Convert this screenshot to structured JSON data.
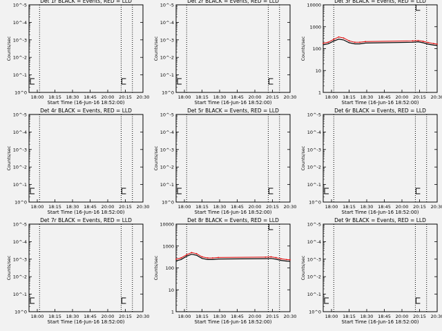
{
  "figure": {
    "background": "#f2f2f2",
    "event_color": "#000000",
    "lld_color": "#e00000",
    "marker_color": "#000000"
  },
  "chart_data": [
    {
      "type": "line",
      "title": "Det 1r BLACK = Events, RED = LLD",
      "xlabel": "Start Time (16-Jun-16 18:52:00)",
      "ylabel": "Counts/sec",
      "xlim": [
        "17:53",
        "20:35"
      ],
      "log_y": true,
      "ylim": [
        1,
        10000
      ],
      "x_ticks": [
        "18:00",
        "18:15",
        "18:30",
        "18:45",
        "20:00",
        "20:15",
        "20:30"
      ],
      "y_ticks": [
        "10^0",
        "10^-1",
        "10^-2",
        "10^-3",
        "10^-4",
        "10^-5"
      ],
      "grid": false,
      "vlines": [
        "18:08",
        "20:04",
        "20:20"
      ],
      "legend": "in title",
      "series": []
    },
    {
      "type": "line",
      "title": "Det 2r BLACK = Events, RED = LLD",
      "xlabel": "Start Time (16-Jun-16 18:52:00)",
      "ylabel": "Counts/sec",
      "xlim": [
        "17:53",
        "20:35"
      ],
      "log_y": true,
      "ylim": [
        1,
        10000
      ],
      "x_ticks": [
        "18:00",
        "18:15",
        "18:30",
        "18:45",
        "20:00",
        "20:15",
        "20:30"
      ],
      "y_ticks": [
        "10^0",
        "10^-1",
        "10^-2",
        "10^-3",
        "10^-4",
        "10^-5"
      ],
      "grid": false,
      "vlines": [
        "18:08",
        "20:04",
        "20:20"
      ],
      "legend": "in title",
      "series": []
    },
    {
      "type": "line",
      "title": "Det 3r BLACK = Events, RED = LLD",
      "xlabel": "Start Time (16-Jun-16 18:52:00)",
      "ylabel": "Counts/sec",
      "xlim": [
        "17:53",
        "20:35"
      ],
      "log_y": true,
      "ylim": [
        1,
        10000
      ],
      "x_ticks": [
        "18:00",
        "18:15",
        "18:30",
        "18:45",
        "20:00",
        "20:15",
        "20:30"
      ],
      "y_ticks": [
        "1",
        "10",
        "100",
        "1000",
        "10000"
      ],
      "grid": false,
      "vlines": [
        "18:08",
        "20:04",
        "20:20"
      ],
      "legend": "in title",
      "series": [
        {
          "color": "#000000",
          "x": [
            "17:53",
            "18:00",
            "18:08",
            "18:15",
            "18:22",
            "18:30",
            "18:38",
            "18:45",
            "18:53",
            "20:00",
            "20:08",
            "20:15",
            "20:22",
            "20:30",
            "20:35"
          ],
          "y": [
            150,
            165,
            220,
            270,
            250,
            185,
            165,
            165,
            180,
            195,
            205,
            185,
            160,
            145,
            140
          ]
        },
        {
          "color": "#e00000",
          "x": [
            "17:53",
            "18:00",
            "18:08",
            "18:15",
            "18:22",
            "18:30",
            "18:38",
            "18:45",
            "18:53",
            "20:00",
            "20:08",
            "20:15",
            "20:22",
            "20:30",
            "20:35"
          ],
          "y": [
            175,
            195,
            265,
            340,
            305,
            225,
            195,
            195,
            210,
            225,
            235,
            215,
            190,
            170,
            160
          ]
        }
      ]
    },
    {
      "type": "line",
      "title": "Det 4r BLACK = Events, RED = LLD",
      "xlabel": "Start Time (16-Jun-16 18:52:00)",
      "ylabel": "Counts/sec",
      "xlim": [
        "17:53",
        "20:35"
      ],
      "log_y": true,
      "ylim": [
        1,
        10000
      ],
      "x_ticks": [
        "18:00",
        "18:15",
        "18:30",
        "18:45",
        "20:00",
        "20:15",
        "20:30"
      ],
      "y_ticks": [
        "10^0",
        "10^-1",
        "10^-2",
        "10^-3",
        "10^-4",
        "10^-5"
      ],
      "grid": false,
      "vlines": [
        "18:08",
        "20:04",
        "20:20"
      ],
      "legend": "in title",
      "series": []
    },
    {
      "type": "line",
      "title": "Det 5r BLACK = Events, RED = LLD",
      "xlabel": "Start Time (16-Jun-16 18:52:00)",
      "ylabel": "Counts/sec",
      "xlim": [
        "17:53",
        "20:35"
      ],
      "log_y": true,
      "ylim": [
        1,
        10000
      ],
      "x_ticks": [
        "18:00",
        "18:15",
        "18:30",
        "18:45",
        "20:00",
        "20:15",
        "20:30"
      ],
      "y_ticks": [
        "10^0",
        "10^-1",
        "10^-2",
        "10^-3",
        "10^-4",
        "10^-5"
      ],
      "grid": false,
      "vlines": [
        "18:08",
        "20:04",
        "20:20"
      ],
      "legend": "in title",
      "series": []
    },
    {
      "type": "line",
      "title": "Det 6r BLACK = Events, RED = LLD",
      "xlabel": "Start Time (16-Jun-16 18:52:00)",
      "ylabel": "Counts/sec",
      "xlim": [
        "17:53",
        "20:35"
      ],
      "log_y": true,
      "ylim": [
        1,
        10000
      ],
      "x_ticks": [
        "18:00",
        "18:15",
        "18:30",
        "18:45",
        "20:00",
        "20:15",
        "20:30"
      ],
      "y_ticks": [
        "10^0",
        "10^-1",
        "10^-2",
        "10^-3",
        "10^-4",
        "10^-5"
      ],
      "grid": false,
      "vlines": [
        "18:08",
        "20:04",
        "20:20"
      ],
      "legend": "in title",
      "series": []
    },
    {
      "type": "line",
      "title": "Det 7r BLACK = Events, RED = LLD",
      "xlabel": "Start Time (16-Jun-16 18:52:00)",
      "ylabel": "Counts/sec",
      "xlim": [
        "17:53",
        "20:35"
      ],
      "log_y": true,
      "ylim": [
        1,
        10000
      ],
      "x_ticks": [
        "18:00",
        "18:15",
        "18:30",
        "18:45",
        "20:00",
        "20:15",
        "20:30"
      ],
      "y_ticks": [
        "10^0",
        "10^-1",
        "10^-2",
        "10^-3",
        "10^-4",
        "10^-5"
      ],
      "grid": false,
      "vlines": [
        "18:08",
        "20:04",
        "20:20"
      ],
      "legend": "in title",
      "series": []
    },
    {
      "type": "line",
      "title": "Det 8r BLACK = Events, RED = LLD",
      "xlabel": "Start Time (16-Jun-16 18:52:00)",
      "ylabel": "Counts/sec",
      "xlim": [
        "17:53",
        "20:35"
      ],
      "log_y": true,
      "ylim": [
        1,
        10000
      ],
      "x_ticks": [
        "18:00",
        "18:15",
        "18:30",
        "18:45",
        "20:00",
        "20:15",
        "20:30"
      ],
      "y_ticks": [
        "1",
        "10",
        "100",
        "1000",
        "10000"
      ],
      "grid": false,
      "vlines": [
        "18:08",
        "20:04",
        "20:20"
      ],
      "legend": "in title",
      "series": [
        {
          "color": "#000000",
          "x": [
            "17:53",
            "18:00",
            "18:08",
            "18:15",
            "18:22",
            "18:30",
            "18:38",
            "18:45",
            "18:53",
            "20:00",
            "20:08",
            "20:15",
            "20:22",
            "20:30",
            "20:35"
          ],
          "y": [
            210,
            240,
            340,
            420,
            380,
            270,
            240,
            240,
            255,
            265,
            270,
            250,
            220,
            205,
            200
          ]
        },
        {
          "color": "#e00000",
          "x": [
            "17:53",
            "18:00",
            "18:08",
            "18:15",
            "18:22",
            "18:30",
            "18:38",
            "18:45",
            "18:53",
            "20:00",
            "20:08",
            "20:15",
            "20:22",
            "20:30",
            "20:35"
          ],
          "y": [
            250,
            285,
            400,
            500,
            450,
            320,
            285,
            285,
            300,
            310,
            320,
            295,
            260,
            240,
            235
          ]
        }
      ]
    },
    {
      "type": "line",
      "title": "Det 9r BLACK = Events, RED = LLD",
      "xlabel": "Start Time (16-Jun-16 18:52:00)",
      "ylabel": "Counts/sec",
      "xlim": [
        "17:53",
        "20:35"
      ],
      "log_y": true,
      "ylim": [
        1,
        10000
      ],
      "x_ticks": [
        "18:00",
        "18:15",
        "18:30",
        "18:45",
        "20:00",
        "20:15",
        "20:30"
      ],
      "y_ticks": [
        "10^0",
        "10^-1",
        "10^-2",
        "10^-3",
        "10^-4",
        "10^-5"
      ],
      "grid": false,
      "vlines": [
        "18:08",
        "20:04",
        "20:20"
      ],
      "legend": "in title",
      "series": []
    }
  ]
}
